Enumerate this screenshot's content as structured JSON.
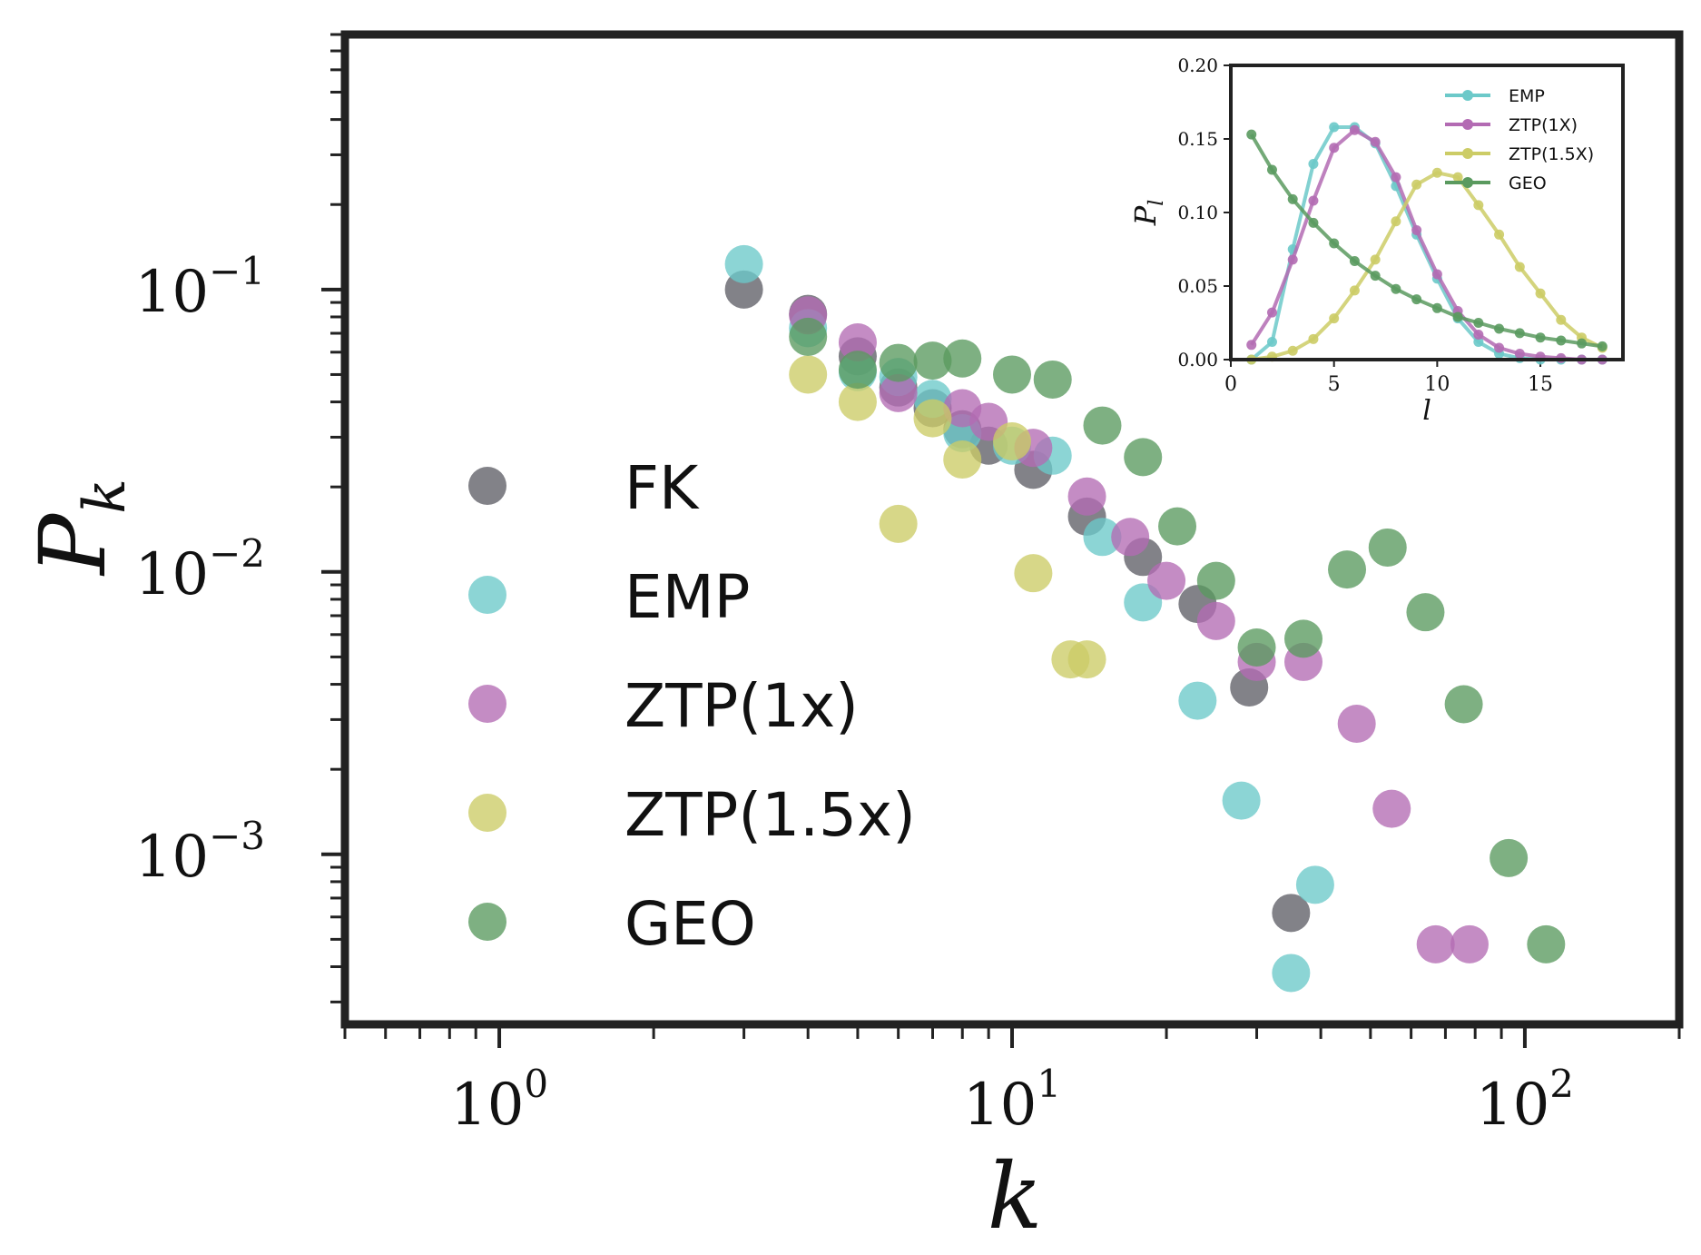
{
  "chart_data": [
    {
      "type": "scatter",
      "xlabel": "k",
      "ylabel": "P",
      "ylabel_sub": "k",
      "x_scale": "log",
      "y_scale": "log",
      "xlim": [
        0.5,
        200
      ],
      "ylim": [
        0.00025,
        0.8
      ],
      "x_ticks": [
        {
          "value": 1,
          "base": "10",
          "exp": "0"
        },
        {
          "value": 10,
          "base": "10",
          "exp": "1"
        },
        {
          "value": 100,
          "base": "10",
          "exp": "2"
        }
      ],
      "y_ticks": [
        {
          "value": 0.1,
          "base": "10",
          "exp": "−1"
        },
        {
          "value": 0.01,
          "base": "10",
          "exp": "−2"
        },
        {
          "value": 0.001,
          "base": "10",
          "exp": "−3"
        }
      ],
      "grid": false,
      "legend_position": "center-left",
      "series": [
        {
          "name": "FK",
          "color": "#5f5f66",
          "points": [
            [
              3,
              0.1
            ],
            [
              4,
              0.082
            ],
            [
              5,
              0.058
            ],
            [
              6,
              0.045
            ],
            [
              7,
              0.038
            ],
            [
              8,
              0.032
            ],
            [
              9,
              0.028
            ],
            [
              11,
              0.023
            ],
            [
              14,
              0.0157
            ],
            [
              18,
              0.0113
            ],
            [
              23,
              0.0077
            ],
            [
              29,
              0.0039
            ],
            [
              35,
              0.00062
            ]
          ]
        },
        {
          "name": "EMP",
          "color": "#6cc9c9",
          "points": [
            [
              3,
              0.123
            ],
            [
              4,
              0.073
            ],
            [
              5,
              0.051
            ],
            [
              6,
              0.049
            ],
            [
              7,
              0.041
            ],
            [
              8,
              0.031
            ],
            [
              10,
              0.028
            ],
            [
              12,
              0.0258
            ],
            [
              15,
              0.0133
            ],
            [
              18,
              0.0078
            ],
            [
              23,
              0.0035
            ],
            [
              28,
              0.00155
            ],
            [
              35,
              0.00038
            ],
            [
              39,
              0.00078
            ]
          ]
        },
        {
          "name": "ZTP(1x)",
          "color": "#b36bb3",
          "points": [
            [
              4,
              0.081
            ],
            [
              5,
              0.065
            ],
            [
              6,
              0.043
            ],
            [
              8,
              0.038
            ],
            [
              9,
              0.034
            ],
            [
              11,
              0.0275
            ],
            [
              14,
              0.0185
            ],
            [
              17,
              0.0133
            ],
            [
              20,
              0.0093
            ],
            [
              25,
              0.0067
            ],
            [
              30,
              0.0048
            ],
            [
              37,
              0.0048
            ],
            [
              47,
              0.0029
            ],
            [
              55,
              0.00145
            ],
            [
              67,
              0.00048
            ],
            [
              78,
              0.00048
            ]
          ]
        },
        {
          "name": "ZTP(1.5x)",
          "color": "#cccc66",
          "points": [
            [
              4,
              0.05
            ],
            [
              5,
              0.04
            ],
            [
              6,
              0.0148
            ],
            [
              7,
              0.035
            ],
            [
              8,
              0.025
            ],
            [
              10,
              0.029
            ],
            [
              11,
              0.0099
            ],
            [
              13,
              0.0049
            ],
            [
              14,
              0.0049
            ]
          ]
        },
        {
          "name": "GEO",
          "color": "#5a9a5f",
          "points": [
            [
              4,
              0.068
            ],
            [
              5,
              0.052
            ],
            [
              6,
              0.055
            ],
            [
              7,
              0.056
            ],
            [
              8,
              0.057
            ],
            [
              10,
              0.05
            ],
            [
              12,
              0.048
            ],
            [
              15,
              0.033
            ],
            [
              18,
              0.0255
            ],
            [
              21,
              0.0145
            ],
            [
              25,
              0.0093
            ],
            [
              30,
              0.0054
            ],
            [
              37,
              0.0058
            ],
            [
              45,
              0.0102
            ],
            [
              54,
              0.0122
            ],
            [
              64,
              0.0072
            ],
            [
              76,
              0.0034
            ],
            [
              93,
              0.00097
            ],
            [
              110,
              0.00048
            ]
          ]
        }
      ]
    },
    {
      "type": "line",
      "xlabel": "l",
      "ylabel": "P",
      "ylabel_sub": "l",
      "xlim": [
        0,
        19
      ],
      "ylim": [
        0,
        0.2
      ],
      "x_ticks": [
        "0",
        "5",
        "10",
        "15"
      ],
      "y_ticks": [
        "0.00",
        "0.05",
        "0.10",
        "0.15",
        "0.20"
      ],
      "legend_position": "upper-right",
      "series": [
        {
          "name": "EMP",
          "color": "#6cc9c9",
          "x": [
            1,
            2,
            3,
            4,
            5,
            6,
            7,
            8,
            9,
            10,
            11,
            12,
            13,
            14,
            15,
            16,
            17,
            18
          ],
          "y": [
            0.0,
            0.012,
            0.075,
            0.133,
            0.158,
            0.158,
            0.147,
            0.118,
            0.085,
            0.055,
            0.028,
            0.012,
            0.004,
            0.001,
            0.0,
            0.0,
            0.0,
            0.0
          ]
        },
        {
          "name": "ZTP(1X)",
          "color": "#b36bb3",
          "x": [
            1,
            2,
            3,
            4,
            5,
            6,
            7,
            8,
            9,
            10,
            11,
            12,
            13,
            14,
            15,
            16,
            17,
            18
          ],
          "y": [
            0.01,
            0.032,
            0.068,
            0.108,
            0.144,
            0.156,
            0.148,
            0.124,
            0.088,
            0.058,
            0.033,
            0.017,
            0.008,
            0.004,
            0.002,
            0.001,
            0.0,
            0.0
          ]
        },
        {
          "name": "ZTP(1.5X)",
          "color": "#cccc66",
          "x": [
            1,
            2,
            3,
            4,
            5,
            6,
            7,
            8,
            9,
            10,
            11,
            12,
            13,
            14,
            15,
            16,
            17,
            18
          ],
          "y": [
            0.0,
            0.002,
            0.006,
            0.014,
            0.028,
            0.047,
            0.068,
            0.094,
            0.119,
            0.127,
            0.124,
            0.105,
            0.085,
            0.063,
            0.045,
            0.027,
            0.015,
            0.008
          ]
        },
        {
          "name": "GEO",
          "color": "#5a9a5f",
          "x": [
            1,
            2,
            3,
            4,
            5,
            6,
            7,
            8,
            9,
            10,
            11,
            12,
            13,
            14,
            15,
            16,
            17,
            18
          ],
          "y": [
            0.153,
            0.129,
            0.109,
            0.093,
            0.079,
            0.067,
            0.057,
            0.048,
            0.041,
            0.035,
            0.029,
            0.025,
            0.021,
            0.018,
            0.015,
            0.013,
            0.011,
            0.009
          ]
        }
      ]
    }
  ]
}
